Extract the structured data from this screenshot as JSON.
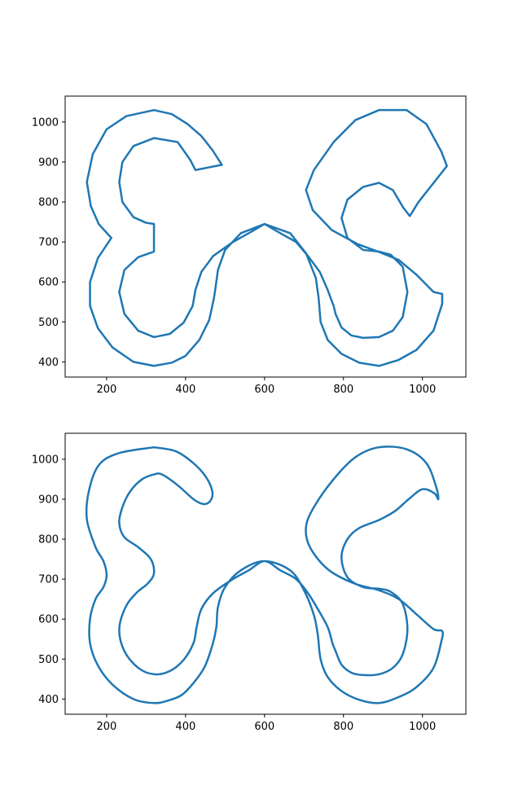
{
  "chart_data": [
    {
      "type": "line",
      "title": "",
      "xlabel": "",
      "ylabel": "",
      "xlim": [
        95,
        1110
      ],
      "ylim": [
        362,
        1065
      ],
      "xticks": [
        200,
        400,
        600,
        800,
        1000
      ],
      "yticks": [
        400,
        500,
        600,
        700,
        800,
        900,
        1000
      ],
      "grid": false,
      "style": "polygonal",
      "series": [
        {
          "color": "#1f77b4",
          "x": [
            320,
            365,
            405,
            440,
            468,
            492,
            425,
            412,
            380,
            320,
            268,
            240,
            232,
            240,
            268,
            300,
            320,
            320,
            280,
            245,
            232,
            245,
            280,
            320,
            360,
            395,
            418,
            425,
            440,
            470,
            520,
            560,
            600,
            640,
            680,
            710,
            740,
            760,
            775,
            780,
            795,
            820,
            850,
            890,
            925,
            950,
            962,
            950,
            920,
            890,
            850,
            810,
            795,
            810,
            850,
            890,
            925,
            952,
            968,
            990,
            1030,
            1062,
            1048,
            1010,
            960,
            890,
            830,
            775,
            725,
            705,
            722,
            770,
            835,
            890,
            940,
            985,
            1028,
            1050,
            1050,
            1028,
            985,
            940,
            890,
            840,
            795,
            760,
            742,
            737,
            730,
            705,
            665,
            600,
            540,
            500,
            482,
            475,
            472,
            460,
            435,
            400,
            365,
            320,
            268,
            215,
            178,
            158,
            158,
            178,
            212,
            180,
            160,
            150,
            165,
            200,
            250,
            320
          ],
          "y": [
            1030,
            1020,
            995,
            965,
            930,
            893,
            880,
            905,
            950,
            960,
            940,
            900,
            850,
            800,
            762,
            748,
            745,
            676,
            662,
            630,
            575,
            520,
            478,
            462,
            470,
            498,
            540,
            580,
            625,
            665,
            700,
            722,
            745,
            722,
            700,
            665,
            625,
            580,
            540,
            520,
            486,
            466,
            460,
            462,
            478,
            512,
            575,
            638,
            668,
            676,
            680,
            710,
            760,
            806,
            838,
            848,
            830,
            785,
            765,
            800,
            850,
            890,
            926,
            995,
            1030,
            1030,
            1005,
            950,
            880,
            830,
            780,
            730,
            695,
            675,
            655,
            618,
            575,
            570,
            545,
            478,
            430,
            405,
            390,
            398,
            420,
            455,
            500,
            560,
            610,
            672,
            722,
            745,
            722,
            680,
            630,
            580,
            560,
            505,
            455,
            415,
            398,
            390,
            400,
            436,
            484,
            540,
            600,
            660,
            710,
            745,
            790,
            850,
            920,
            982,
            1015,
            1030
          ]
        }
      ]
    },
    {
      "type": "line",
      "title": "",
      "xlabel": "",
      "ylabel": "",
      "xlim": [
        95,
        1110
      ],
      "ylim": [
        362,
        1065
      ],
      "xticks": [
        200,
        400,
        600,
        800,
        1000
      ],
      "yticks": [
        400,
        500,
        600,
        700,
        800,
        900,
        1000
      ],
      "grid": false,
      "style": "smooth",
      "series": [
        {
          "color": "#1f77b4",
          "x": [
            320,
            375,
            420,
            452,
            468,
            462,
            445,
            420,
            380,
            340,
            320,
            290,
            260,
            240,
            232,
            245,
            280,
            312,
            320,
            305,
            275,
            248,
            232,
            245,
            280,
            320,
            360,
            395,
            420,
            428,
            440,
            470,
            520,
            560,
            600,
            640,
            680,
            710,
            735,
            760,
            772,
            780,
            795,
            820,
            850,
            890,
            925,
            950,
            962,
            950,
            920,
            890,
            850,
            810,
            795,
            810,
            840,
            890,
            930,
            965,
            1000,
            1030,
            1040,
            1035,
            1010,
            960,
            890,
            830,
            775,
            725,
            705,
            715,
            760,
            825,
            890,
            940,
            985,
            1028,
            1050,
            1048,
            1028,
            985,
            940,
            890,
            840,
            795,
            760,
            742,
            735,
            725,
            700,
            665,
            600,
            540,
            500,
            482,
            478,
            468,
            448,
            420,
            390,
            355,
            320,
            268,
            215,
            178,
            158,
            158,
            172,
            192,
            200,
            192,
            172,
            150,
            155,
            180,
            230,
            320
          ],
          "y": [
            1030,
            1020,
            990,
            955,
            918,
            895,
            888,
            900,
            935,
            962,
            962,
            950,
            920,
            880,
            840,
            805,
            780,
            750,
            715,
            690,
            665,
            630,
            575,
            520,
            478,
            462,
            470,
            498,
            540,
            580,
            625,
            665,
            700,
            722,
            745,
            722,
            700,
            665,
            625,
            580,
            540,
            520,
            486,
            466,
            460,
            462,
            478,
            512,
            575,
            638,
            668,
            676,
            680,
            705,
            755,
            800,
            828,
            848,
            870,
            900,
            925,
            915,
            900,
            930,
            990,
            1025,
            1030,
            1005,
            950,
            880,
            830,
            780,
            725,
            690,
            672,
            650,
            612,
            575,
            570,
            545,
            478,
            430,
            405,
            390,
            398,
            420,
            455,
            500,
            560,
            610,
            672,
            722,
            745,
            722,
            680,
            630,
            580,
            535,
            480,
            440,
            410,
            396,
            390,
            400,
            436,
            484,
            540,
            600,
            650,
            680,
            710,
            745,
            780,
            850,
            920,
            985,
            1015,
            1030
          ]
        }
      ]
    }
  ]
}
